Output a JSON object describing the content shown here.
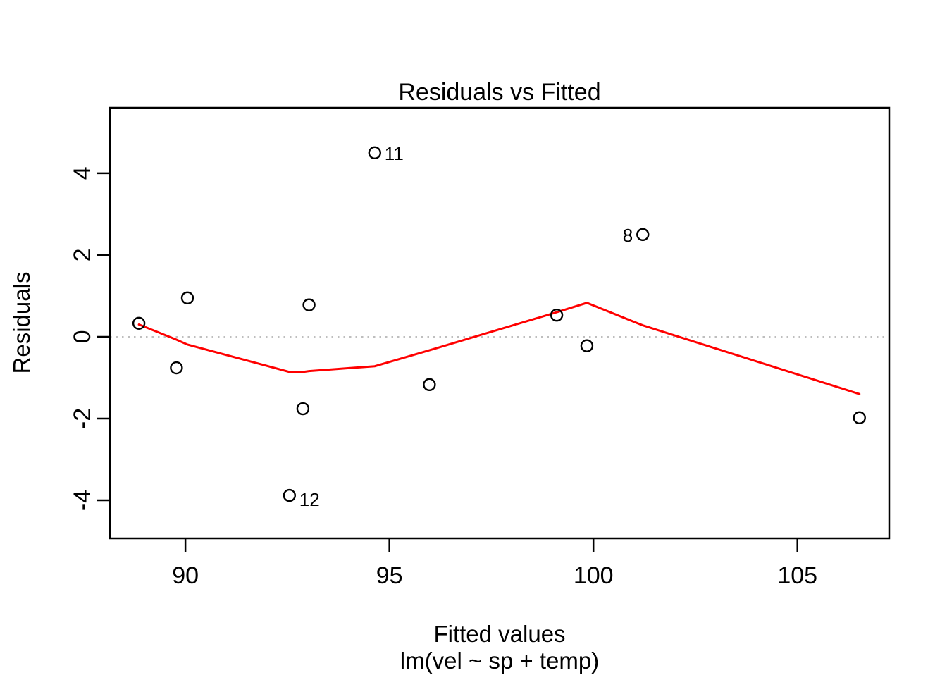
{
  "chart_data": {
    "type": "scatter",
    "title": "Residuals vs Fitted",
    "xlabel": "Fitted values",
    "model_formula": "lm(vel ~ sp + temp)",
    "ylabel": "Residuals",
    "xlim": [
      88.15,
      107.25
    ],
    "ylim": [
      -4.93,
      5.6
    ],
    "x_ticks": [
      90,
      95,
      100,
      105
    ],
    "y_ticks": [
      -4,
      -2,
      0,
      2,
      4
    ],
    "grid": false,
    "legend": "none",
    "zero_reference_line": {
      "y": 0,
      "style": "dotted",
      "color": "#bebebe"
    },
    "points": [
      {
        "x": 88.86,
        "y": 0.33
      },
      {
        "x": 89.78,
        "y": -0.76
      },
      {
        "x": 90.05,
        "y": 0.95
      },
      {
        "x": 92.55,
        "y": -3.88,
        "label": "12",
        "label_side": "right"
      },
      {
        "x": 92.88,
        "y": -1.76
      },
      {
        "x": 93.03,
        "y": 0.78
      },
      {
        "x": 94.64,
        "y": 4.5,
        "label": "11",
        "label_side": "right"
      },
      {
        "x": 95.98,
        "y": -1.17
      },
      {
        "x": 99.1,
        "y": 0.53
      },
      {
        "x": 99.84,
        "y": -0.22
      },
      {
        "x": 101.21,
        "y": 2.5,
        "label": "8",
        "label_side": "left"
      },
      {
        "x": 106.52,
        "y": -1.98
      }
    ],
    "smooth_line": {
      "name": "lowess-smooth",
      "color": "#ff0000",
      "points": [
        [
          88.86,
          0.3
        ],
        [
          89.78,
          -0.07
        ],
        [
          90.05,
          -0.19
        ],
        [
          92.55,
          -0.86
        ],
        [
          92.88,
          -0.86
        ],
        [
          93.03,
          -0.84
        ],
        [
          94.64,
          -0.72
        ],
        [
          95.98,
          -0.33
        ],
        [
          99.1,
          0.6
        ],
        [
          99.84,
          0.83
        ],
        [
          101.21,
          0.28
        ],
        [
          106.52,
          -1.4
        ]
      ]
    },
    "colors": {
      "point_stroke": "#000000",
      "box_stroke": "#000000",
      "smooth_line": "#ff0000",
      "zero_line": "#bebebe",
      "text": "#000000"
    }
  }
}
